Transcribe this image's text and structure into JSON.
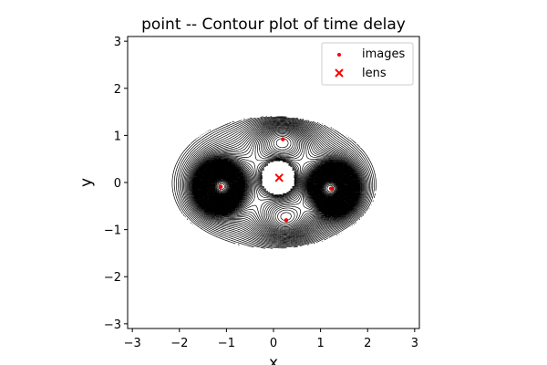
{
  "chart_data": {
    "type": "contour",
    "title": "point -- Contour plot of time delay",
    "xlabel": "x",
    "ylabel": "y",
    "xlim": [
      -3.1,
      3.1
    ],
    "ylim": [
      -3.1,
      3.1
    ],
    "xticks": [
      -3,
      -2,
      -1,
      0,
      1,
      2,
      3
    ],
    "yticks": [
      -3,
      -2,
      -1,
      0,
      1,
      2,
      3
    ],
    "xtick_labels": [
      "−3",
      "−2",
      "−1",
      "0",
      "1",
      "2",
      "3"
    ],
    "ytick_labels": [
      "−3",
      "−2",
      "−1",
      "0",
      "1",
      "2",
      "3"
    ],
    "grid": false,
    "legend": {
      "placement": "top-right",
      "entries": [
        {
          "label": "images",
          "marker": "dot",
          "color": "#ff0000"
        },
        {
          "label": "lens",
          "marker": "x",
          "color": "#ff0000"
        }
      ]
    },
    "contour_color": "#000000",
    "contour_region": {
      "center": [
        0.0,
        0.0
      ],
      "semi_axis_x": 2.2,
      "semi_axis_y": 1.4
    },
    "contour_hole": {
      "center": [
        0.1,
        0.1
      ],
      "radius": 0.36
    },
    "series": [
      {
        "name": "images",
        "type": "scatter",
        "color": "#ff0000",
        "points": [
          {
            "x": -1.12,
            "y": -0.09
          },
          {
            "x": 1.23,
            "y": -0.13
          },
          {
            "x": 0.2,
            "y": 0.92
          },
          {
            "x": 0.27,
            "y": -0.8
          }
        ]
      },
      {
        "name": "lens",
        "type": "scatter",
        "color": "#ff0000",
        "points": [
          {
            "x": 0.12,
            "y": 0.1
          }
        ]
      }
    ]
  }
}
